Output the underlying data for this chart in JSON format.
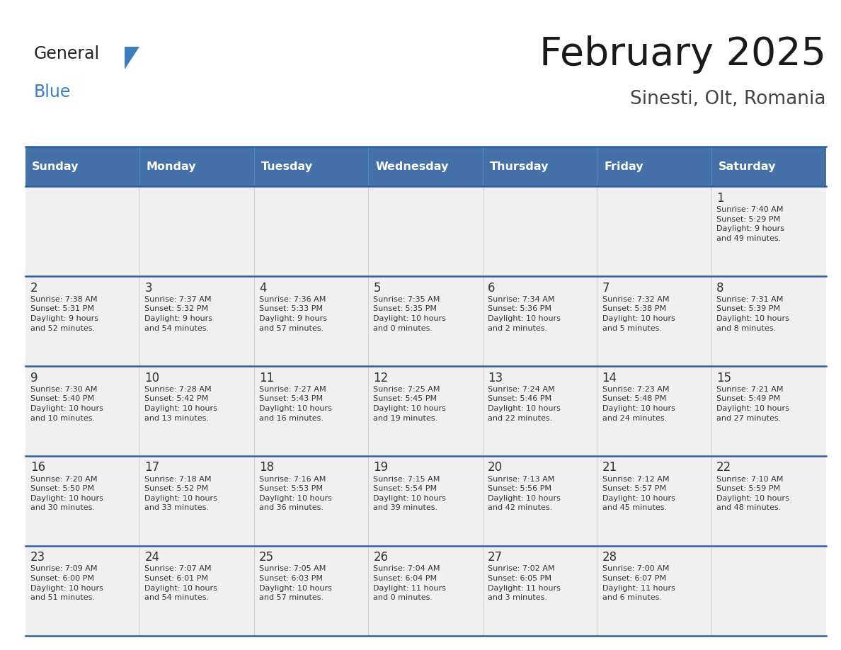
{
  "title": "February 2025",
  "subtitle": "Sinesti, Olt, Romania",
  "header_bg": "#4472a8",
  "header_text_color": "#ffffff",
  "cell_bg": "#f0f0f0",
  "border_color": "#2e5f9e",
  "text_color": "#333333",
  "days_of_week": [
    "Sunday",
    "Monday",
    "Tuesday",
    "Wednesday",
    "Thursday",
    "Friday",
    "Saturday"
  ],
  "logo_general_color": "#222222",
  "logo_blue_color": "#3c7dbf",
  "logo_triangle_color": "#3c7dbf",
  "weeks": [
    [
      {
        "day": "",
        "info": ""
      },
      {
        "day": "",
        "info": ""
      },
      {
        "day": "",
        "info": ""
      },
      {
        "day": "",
        "info": ""
      },
      {
        "day": "",
        "info": ""
      },
      {
        "day": "",
        "info": ""
      },
      {
        "day": "1",
        "info": "Sunrise: 7:40 AM\nSunset: 5:29 PM\nDaylight: 9 hours\nand 49 minutes."
      }
    ],
    [
      {
        "day": "2",
        "info": "Sunrise: 7:38 AM\nSunset: 5:31 PM\nDaylight: 9 hours\nand 52 minutes."
      },
      {
        "day": "3",
        "info": "Sunrise: 7:37 AM\nSunset: 5:32 PM\nDaylight: 9 hours\nand 54 minutes."
      },
      {
        "day": "4",
        "info": "Sunrise: 7:36 AM\nSunset: 5:33 PM\nDaylight: 9 hours\nand 57 minutes."
      },
      {
        "day": "5",
        "info": "Sunrise: 7:35 AM\nSunset: 5:35 PM\nDaylight: 10 hours\nand 0 minutes."
      },
      {
        "day": "6",
        "info": "Sunrise: 7:34 AM\nSunset: 5:36 PM\nDaylight: 10 hours\nand 2 minutes."
      },
      {
        "day": "7",
        "info": "Sunrise: 7:32 AM\nSunset: 5:38 PM\nDaylight: 10 hours\nand 5 minutes."
      },
      {
        "day": "8",
        "info": "Sunrise: 7:31 AM\nSunset: 5:39 PM\nDaylight: 10 hours\nand 8 minutes."
      }
    ],
    [
      {
        "day": "9",
        "info": "Sunrise: 7:30 AM\nSunset: 5:40 PM\nDaylight: 10 hours\nand 10 minutes."
      },
      {
        "day": "10",
        "info": "Sunrise: 7:28 AM\nSunset: 5:42 PM\nDaylight: 10 hours\nand 13 minutes."
      },
      {
        "day": "11",
        "info": "Sunrise: 7:27 AM\nSunset: 5:43 PM\nDaylight: 10 hours\nand 16 minutes."
      },
      {
        "day": "12",
        "info": "Sunrise: 7:25 AM\nSunset: 5:45 PM\nDaylight: 10 hours\nand 19 minutes."
      },
      {
        "day": "13",
        "info": "Sunrise: 7:24 AM\nSunset: 5:46 PM\nDaylight: 10 hours\nand 22 minutes."
      },
      {
        "day": "14",
        "info": "Sunrise: 7:23 AM\nSunset: 5:48 PM\nDaylight: 10 hours\nand 24 minutes."
      },
      {
        "day": "15",
        "info": "Sunrise: 7:21 AM\nSunset: 5:49 PM\nDaylight: 10 hours\nand 27 minutes."
      }
    ],
    [
      {
        "day": "16",
        "info": "Sunrise: 7:20 AM\nSunset: 5:50 PM\nDaylight: 10 hours\nand 30 minutes."
      },
      {
        "day": "17",
        "info": "Sunrise: 7:18 AM\nSunset: 5:52 PM\nDaylight: 10 hours\nand 33 minutes."
      },
      {
        "day": "18",
        "info": "Sunrise: 7:16 AM\nSunset: 5:53 PM\nDaylight: 10 hours\nand 36 minutes."
      },
      {
        "day": "19",
        "info": "Sunrise: 7:15 AM\nSunset: 5:54 PM\nDaylight: 10 hours\nand 39 minutes."
      },
      {
        "day": "20",
        "info": "Sunrise: 7:13 AM\nSunset: 5:56 PM\nDaylight: 10 hours\nand 42 minutes."
      },
      {
        "day": "21",
        "info": "Sunrise: 7:12 AM\nSunset: 5:57 PM\nDaylight: 10 hours\nand 45 minutes."
      },
      {
        "day": "22",
        "info": "Sunrise: 7:10 AM\nSunset: 5:59 PM\nDaylight: 10 hours\nand 48 minutes."
      }
    ],
    [
      {
        "day": "23",
        "info": "Sunrise: 7:09 AM\nSunset: 6:00 PM\nDaylight: 10 hours\nand 51 minutes."
      },
      {
        "day": "24",
        "info": "Sunrise: 7:07 AM\nSunset: 6:01 PM\nDaylight: 10 hours\nand 54 minutes."
      },
      {
        "day": "25",
        "info": "Sunrise: 7:05 AM\nSunset: 6:03 PM\nDaylight: 10 hours\nand 57 minutes."
      },
      {
        "day": "26",
        "info": "Sunrise: 7:04 AM\nSunset: 6:04 PM\nDaylight: 11 hours\nand 0 minutes."
      },
      {
        "day": "27",
        "info": "Sunrise: 7:02 AM\nSunset: 6:05 PM\nDaylight: 11 hours\nand 3 minutes."
      },
      {
        "day": "28",
        "info": "Sunrise: 7:00 AM\nSunset: 6:07 PM\nDaylight: 11 hours\nand 6 minutes."
      },
      {
        "day": "",
        "info": ""
      }
    ]
  ]
}
